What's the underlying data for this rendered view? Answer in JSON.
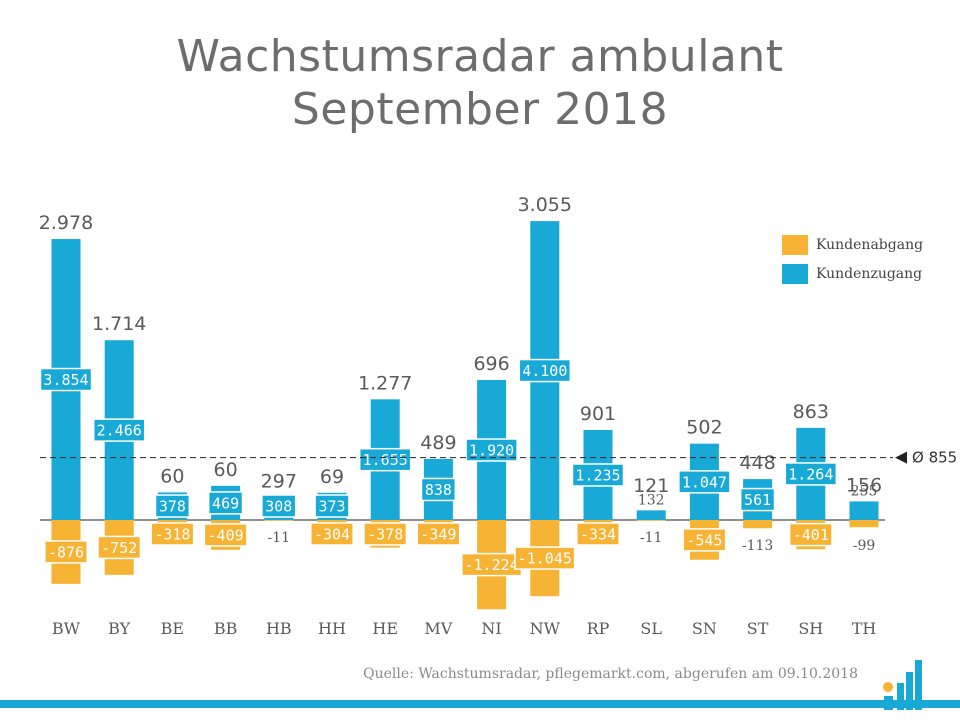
{
  "title": {
    "line1": "Wachstumsradar ambulant",
    "line2": "September 2018"
  },
  "source": "Quelle: Wachstumsradar, pflegemarkt.com, abgerufen am 09.10.2018",
  "colors": {
    "zugang": "#18a9d7",
    "abgang": "#f7b334",
    "text": "#5a5a5a",
    "title": "#6d6d6d"
  },
  "chart_data": {
    "type": "bar",
    "categories": [
      "BW",
      "BY",
      "BE",
      "BB",
      "HB",
      "HH",
      "HE",
      "MV",
      "NI",
      "NW",
      "RP",
      "SL",
      "SN",
      "ST",
      "SH",
      "TH"
    ],
    "series": [
      {
        "name": "Kundenabgang",
        "values": [
          -876,
          -752,
          -318,
          -409,
          -11,
          -304,
          -378,
          -349,
          -1224,
          -1045,
          -334,
          -11,
          -545,
          -113,
          -401,
          -99
        ],
        "labels": [
          "-876",
          "-752",
          "-318",
          "-409",
          "-11",
          "-304",
          "-378",
          "-349",
          "-1.224",
          "-1.045",
          "-334",
          "-11",
          "-545",
          "-113",
          "-401",
          "-99"
        ]
      },
      {
        "name": "Kundenzugang",
        "values": [
          3854,
          2466,
          378,
          469,
          308,
          373,
          1655,
          838,
          1920,
          4100,
          1235,
          132,
          1047,
          561,
          1264,
          255
        ],
        "labels": [
          "3.854",
          "2.466",
          "378",
          "469",
          "308",
          "373",
          "1.655",
          "838",
          "1.920",
          "4.100",
          "1.235",
          "132",
          "1.047",
          "561",
          "1.264",
          "255"
        ]
      }
    ],
    "net": {
      "values": [
        2978,
        1714,
        60,
        60,
        297,
        69,
        1277,
        489,
        696,
        3055,
        901,
        121,
        502,
        448,
        863,
        156
      ],
      "labels": [
        "2.978",
        "1.714",
        "60",
        "60",
        "297",
        "69",
        "1.277",
        "489",
        "696",
        "3.055",
        "901",
        "121",
        "502",
        "448",
        "863",
        "156"
      ]
    },
    "average": {
      "value": 855,
      "label": "Ø 855"
    },
    "legend": [
      "Kundenabgang",
      "Kundenzugang"
    ],
    "legend_position": "top-right",
    "ylim": [
      -1250,
      4100
    ],
    "grid": false
  }
}
